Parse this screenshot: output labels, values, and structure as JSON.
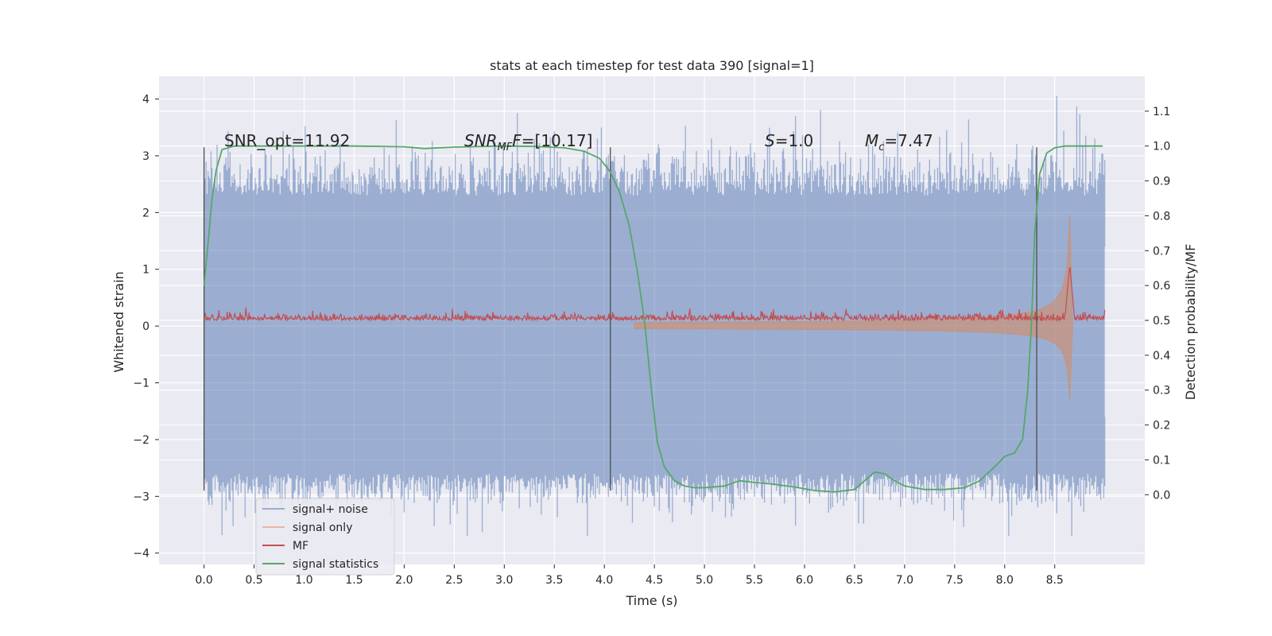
{
  "chart_data": {
    "type": "line",
    "title": "stats at each timestep for test data 390 [signal=1]",
    "xlabel": "Time (s)",
    "ylabel": "Whitened strain",
    "ylabel_right": "Detection probability/MF",
    "xlim": [
      -0.45,
      9.4
    ],
    "ylim": [
      -4.2,
      4.4
    ],
    "ylim_right": [
      -0.2,
      1.2
    ],
    "x_ticks": [
      0.0,
      0.5,
      1.0,
      1.5,
      2.0,
      2.5,
      3.0,
      3.5,
      4.0,
      4.5,
      5.0,
      5.5,
      6.0,
      6.5,
      7.0,
      7.5,
      8.0,
      8.5
    ],
    "x_tick_labels": [
      "0.0",
      "0.5",
      "1.0",
      "1.5",
      "2.0",
      "2.5",
      "3.0",
      "3.5",
      "4.0",
      "4.5",
      "5.0",
      "5.5",
      "6.0",
      "6.5",
      "7.0",
      "7.5",
      "8.0",
      "8.5"
    ],
    "y_ticks": [
      4,
      3,
      2,
      1,
      0,
      -1,
      -2,
      -3,
      -4
    ],
    "y_tick_labels": [
      "4",
      "3",
      "2",
      "1",
      "0",
      "−1",
      "−2",
      "−3",
      "−4"
    ],
    "y_right_ticks": [
      1.1,
      1.0,
      0.9,
      0.8,
      0.7,
      0.6,
      0.5,
      0.4,
      0.3,
      0.2,
      0.1,
      0.0
    ],
    "y_right_tick_labels": [
      "1.1",
      "1.0",
      "0.9",
      "0.8",
      "0.7",
      "0.6",
      "0.5",
      "0.4",
      "0.3",
      "0.2",
      "0.1",
      "0.0"
    ],
    "grid": true,
    "legend_position": "bottom-left",
    "series": [
      {
        "name": "signal+ noise",
        "axis": "left",
        "color": "#4c72b0",
        "style": "noise-band",
        "x_range": [
          0.0,
          9.0
        ],
        "envelope_upper": 2.3,
        "envelope_lower": -2.6,
        "core_band": [
          -1.6,
          1.4
        ]
      },
      {
        "name": "signal only",
        "axis": "left",
        "color": "#dd8452",
        "style": "chirp",
        "x_range": [
          4.3,
          8.68
        ],
        "merger_time": 8.65,
        "peak_upper": 1.95,
        "peak_lower": -1.3
      },
      {
        "name": "MF",
        "axis": "right",
        "color": "#c44e52",
        "style": "noisy-line",
        "x_range": [
          0.0,
          9.0
        ],
        "baseline": 0.5,
        "peak_time": 8.65,
        "peak_value": 0.66
      },
      {
        "name": "signal statistics",
        "axis": "right",
        "color": "#55a868",
        "style": "line",
        "x": [
          0.0,
          0.05,
          0.08,
          0.12,
          0.18,
          0.3,
          0.6,
          1.0,
          1.5,
          2.0,
          2.2,
          2.5,
          3.0,
          3.3,
          3.6,
          3.8,
          3.95,
          4.05,
          4.15,
          4.25,
          4.33,
          4.4,
          4.47,
          4.53,
          4.6,
          4.7,
          4.8,
          4.9,
          5.0,
          5.2,
          5.35,
          5.5,
          5.7,
          5.9,
          6.1,
          6.3,
          6.5,
          6.6,
          6.7,
          6.8,
          6.9,
          7.0,
          7.2,
          7.4,
          7.6,
          7.75,
          7.9,
          8.0,
          8.1,
          8.18,
          8.23,
          8.27,
          8.3,
          8.35,
          8.42,
          8.5,
          8.6,
          8.75,
          8.9,
          8.98
        ],
        "y": [
          0.6,
          0.75,
          0.85,
          0.93,
          0.99,
          1.0,
          1.0,
          1.0,
          1.0,
          0.998,
          0.993,
          0.997,
          1.0,
          0.999,
          0.995,
          0.985,
          0.965,
          0.93,
          0.87,
          0.77,
          0.64,
          0.5,
          0.3,
          0.15,
          0.08,
          0.04,
          0.025,
          0.02,
          0.02,
          0.025,
          0.04,
          0.035,
          0.03,
          0.022,
          0.012,
          0.008,
          0.015,
          0.04,
          0.065,
          0.06,
          0.04,
          0.025,
          0.015,
          0.015,
          0.02,
          0.04,
          0.08,
          0.11,
          0.12,
          0.16,
          0.3,
          0.5,
          0.75,
          0.92,
          0.98,
          0.995,
          1.0,
          1.0,
          1.0,
          1.0
        ]
      }
    ],
    "vertical_lines": [
      0.0,
      4.06,
      8.32
    ],
    "vertical_line_span": [
      -2.9,
      3.15
    ],
    "annotations": [
      {
        "id": "snr-opt",
        "x": 0.2,
        "y": 3.25,
        "prefix": "SNR_opt=",
        "value": "11.92"
      },
      {
        "id": "snr-mf",
        "x": 2.6,
        "y": 3.25,
        "prefix": "SNR",
        "sub": "MF",
        "suffix": "F=",
        "value": "[10.17]"
      },
      {
        "id": "s-value",
        "x": 5.6,
        "y": 3.25,
        "prefix": "S",
        "value": "=1.0"
      },
      {
        "id": "mc-value",
        "x": 6.6,
        "y": 3.25,
        "prefix": "M",
        "sub": "c",
        "value": "=7.47"
      }
    ]
  },
  "legend": {
    "items": [
      {
        "label": "signal+ noise",
        "color": "#4c72b0"
      },
      {
        "label": "signal only",
        "color": "#dd8452"
      },
      {
        "label": "MF",
        "color": "#c44e52"
      },
      {
        "label": "signal statistics",
        "color": "#55a868"
      }
    ]
  }
}
